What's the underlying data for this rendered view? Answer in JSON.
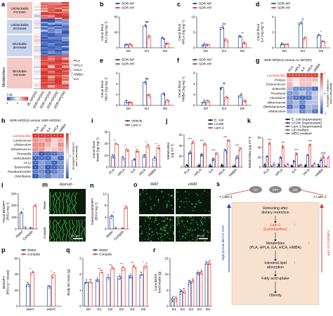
{
  "colors": {
    "np": "#1a4aa8",
    "hp": "#e0392f",
    "vehicle": "#1a4aa8",
    "lam1": "#e0392f",
    "ecoli": "#111111",
    "lc2w": "#1a4aa8",
    "lam1sup": "#e0392f",
    "lb": "#2a8a3a",
    "mrs": "#c040c0",
    "heat_pos": "#d6332a",
    "heat_neg": "#2a4fb0",
    "heat_mid": "#ffffff",
    "box_fill": "#f9e1cf",
    "micro_green": "#3fbf4a",
    "water": "#1a4aa8",
    "compds": "#e0392f"
  },
  "panels": {
    "a": {
      "letter": "a",
      "ylabel": "Metabolites",
      "groups": [
        "Unblockable increase",
        "Unblockable decrease",
        "Blockable decrease",
        "Blockable increase"
      ],
      "columns": [
        "AL-NP(D0)",
        "SDR-NP(D4)",
        "SDR-HP(D4)",
        "SDR-NP(D6)",
        "SDR-HP(D6)"
      ],
      "row_labels": [
        "PLA",
        "HPLA",
        "HICA",
        "HMBA",
        "ILA"
      ],
      "legend_title": "Log",
      "legend_ticks": [
        "-1",
        "0",
        "1"
      ]
    },
    "b": {
      "letter": "b",
      "legend": [
        "SDR-NP",
        "SDR-HP"
      ],
      "ylabel": "Cecal fecal\nPLA (ng mg⁻¹)",
      "yticks": [
        "0",
        "40",
        "80"
      ],
      "categories": [
        "D0",
        "D4",
        "D6"
      ],
      "marks": [
        "##",
        "**"
      ]
    },
    "c": {
      "letter": "c",
      "legend": [
        "SDR-NP",
        "SDR-HP"
      ],
      "ylabel": "Cecal fecal\nHPLA (ng mg⁻¹)",
      "yticks": [
        "0",
        "5",
        "10"
      ],
      "categories": [
        "D0",
        "D4",
        "D6"
      ],
      "marks": [
        "##",
        "**"
      ]
    },
    "d": {
      "letter": "d",
      "legend": [
        "SDR-NP",
        "SDR-HP"
      ],
      "ylabel": "Cecal fecal\nILA (ng mg⁻¹)",
      "yticks": [
        "0",
        "2",
        "4"
      ],
      "categories": [
        "D0",
        "D4",
        "D6"
      ],
      "marks": [
        "#",
        "*"
      ]
    },
    "e": {
      "letter": "e",
      "legend": [
        "SDR-NP",
        "SDR-HP"
      ],
      "ylabel": "Cecal fecal\nHICA (ng mg⁻¹)",
      "yticks": [
        "0",
        "2",
        "4",
        "6"
      ],
      "categories": [
        "D0",
        "D4",
        "D6"
      ],
      "marks": [
        "##",
        "**"
      ]
    },
    "f": {
      "letter": "f",
      "legend": [
        "SDR-NP",
        "SDR-HP"
      ],
      "ylabel": "Cecal fecal\nHMBA (ng mg⁻¹)",
      "yticks": [
        "0",
        "2",
        "4",
        "6"
      ],
      "categories": [
        "D0",
        "D4",
        "D6"
      ],
      "marks": [
        "#",
        "**"
      ]
    },
    "g": {
      "letter": "g",
      "title": "SDR-NP(D4) versus AL-NP(D0)",
      "columns": [
        "PLA",
        "HPLA",
        "ILA",
        "HICA",
        "HMBA"
      ],
      "rows": [
        "Lactobacillus",
        "Proteus",
        "Enterococcus",
        "Sutterella",
        "Roseburia",
        "Clostridium",
        "Akkermansia",
        "Bifidobacterium",
        "Allobaculum"
      ],
      "legend_title": "Spearman's rank\ncorrelation coefficients",
      "legend_ticks": [
        "1",
        "0",
        "-1"
      ]
    },
    "h": {
      "letter": "h",
      "title": "SDR-HP(D4) versus SDR-NP(D4)",
      "columns": [
        "PLA",
        "HPLA",
        "ILA",
        "HICA",
        "HMBA"
      ],
      "rows": [
        "Lactobacillus",
        "Lactococcus",
        "Allobaculum",
        "Streptococcus",
        "Prevotella",
        "Helicobacter",
        "AF12",
        "Bacteroides",
        "Parabacteroides",
        "Odoribacter"
      ],
      "legend_title": "Spearman's rank\ncorrelation coefficients",
      "legend_ticks": [
        "1",
        "0",
        "-1"
      ]
    },
    "i": {
      "letter": "i",
      "legend": [
        "Vehicle",
        "Lam-1"
      ],
      "ylabel": "Cecal fecal\nlevels (ng mg⁻¹)",
      "yticks": [
        "0",
        "10",
        "20",
        "30"
      ],
      "categories": [
        "PLA",
        "HPLA",
        "ILA",
        "HICA",
        "HMBA"
      ],
      "marks": [
        "**",
        "**",
        "*",
        "**",
        "**"
      ]
    },
    "j": {
      "letter": "j",
      "legend": [
        "E. coli",
        "LC2W",
        "Lam-1"
      ],
      "ylabel": "Metabolites\n(μg ml⁻¹)",
      "yticks": [
        "0",
        "20",
        "40",
        "60"
      ],
      "categories": [
        "PLA",
        "HPLA",
        "ILA",
        "HICA",
        "HMBA"
      ],
      "marks": [
        "***",
        "***",
        "***",
        "***",
        "***"
      ]
    },
    "k": {
      "letter": "k",
      "legend": [
        "E. coli (supernatant)",
        "LC2W (supernatant)",
        "Lam-1 (supernatant)",
        "LB medium",
        "MRS medium"
      ],
      "ylabel": "Metabolites (μg ml⁻¹)",
      "yticks": [
        "0",
        "20",
        "40",
        "60"
      ],
      "categories": [
        "PLA",
        "HPLA",
        "ILA",
        "HICA",
        "HMBA"
      ],
      "marks": [
        "***",
        "***",
        "***",
        "***",
        "NS"
      ]
    },
    "l": {
      "letter": "l",
      "ylabel": "Fecal BODIPY\n(RFU mg⁻¹)",
      "yticks": [
        "0",
        "100",
        "200",
        "300"
      ],
      "categories": [
        "Water",
        "Compds"
      ],
      "marks": [
        "*"
      ]
    },
    "m": {
      "letter": "m",
      "title": "Jejunum",
      "rows": [
        "Water",
        "Compds"
      ],
      "scale": "100 μm"
    },
    "n": {
      "letter": "n",
      "ylabel": "Intestinal BODIPY\n(RFU mg⁻¹)",
      "yticks": [
        "0",
        "4",
        "8",
        "12"
      ],
      "categories": [
        "Water",
        "Compds"
      ],
      "marks": [
        "*"
      ]
    },
    "o": {
      "letter": "o",
      "columns": [
        "iWAT",
        "eWAT"
      ],
      "rows": [
        "Water",
        "Compds"
      ],
      "scale": "50 μm"
    },
    "p": {
      "letter": "p",
      "legend": [
        "Water",
        "Compds"
      ],
      "ylabel": "BODIPY\n(RFU g⁻¹ tissue)",
      "yticks": [
        "0",
        "20",
        "40",
        "60"
      ],
      "categories": [
        "iWAT",
        "eWAT"
      ],
      "marks": [
        "*",
        "*"
      ]
    },
    "q": {
      "letter": "q",
      "legend": [
        "Water",
        "Compds"
      ],
      "ylabel": "Body fat mass (g)",
      "yticks": [
        "0",
        "1",
        "2",
        "3"
      ],
      "categories": [
        "D0",
        "D1",
        "D2",
        "D3",
        "D4",
        "D5"
      ],
      "marks": [
        "**",
        "**",
        "**",
        "**",
        "*"
      ]
    },
    "r": {
      "letter": "r",
      "ylabel": "Cumulative\nfood intake (g)",
      "yticks": [
        "0",
        "5",
        "10",
        "15"
      ],
      "categories": [
        "D1",
        "D2",
        "D3",
        "D4",
        "D5"
      ]
    },
    "s": {
      "letter": "s",
      "top_labels": [
        "GF",
        "SPF",
        "GB"
      ],
      "lam_left": "+ Lam-1",
      "lam_right": "+ Lam-1",
      "steps": [
        "Refeeding after\ndietary restriction",
        "Lam-1\n(Lactobacillus)",
        "Metabolites\n(PLA, HPLA, ILA, HICA, HMBA)",
        "Intestinal lipid\nabsorption",
        "Fatty acid uptake",
        "Obesity"
      ],
      "side_left": "High-protein\ndiet for SDR",
      "side_right": "Antibiotics\nfor SPF"
    }
  }
}
